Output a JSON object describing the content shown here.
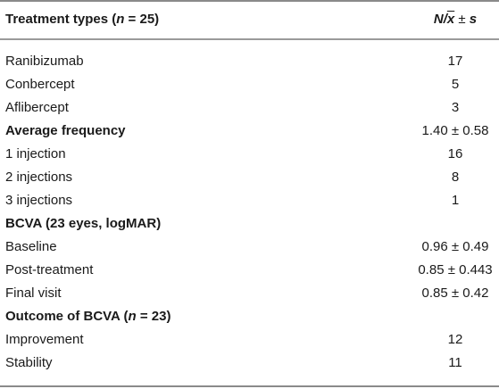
{
  "header": {
    "label_prefix": "Treatment types (",
    "label_n": "n",
    "label_suffix": " = 25)",
    "value_n": "N",
    "value_slash": "/",
    "value_x": "x",
    "value_pm": " ± ",
    "value_s": "s"
  },
  "rows": [
    {
      "label": "Ranibizumab",
      "value": "17"
    },
    {
      "label": "Conbercept",
      "value": "5"
    },
    {
      "label": "Aflibercept",
      "value": "3"
    },
    {
      "label": "Average frequency",
      "value": "1.40 ± 0.58"
    },
    {
      "label": "1 injection",
      "value": "16"
    },
    {
      "label": "2 injections",
      "value": "8"
    },
    {
      "label": "3 injections",
      "value": "1"
    },
    {
      "label": "BCVA (23 eyes, logMAR)",
      "value": ""
    },
    {
      "label": "Baseline",
      "value": "0.96 ± 0.49"
    },
    {
      "label": "Post-treatment",
      "value": "0.85 ± 0.443"
    },
    {
      "label": "Final visit",
      "value": "0.85 ± 0.42"
    },
    {
      "label_prefix": "Outcome of BCVA (",
      "label_n": "n",
      "label_suffix": " = 23)",
      "value": ""
    },
    {
      "label": "Improvement",
      "value": "12"
    },
    {
      "label": "Stability",
      "value": "11"
    }
  ]
}
